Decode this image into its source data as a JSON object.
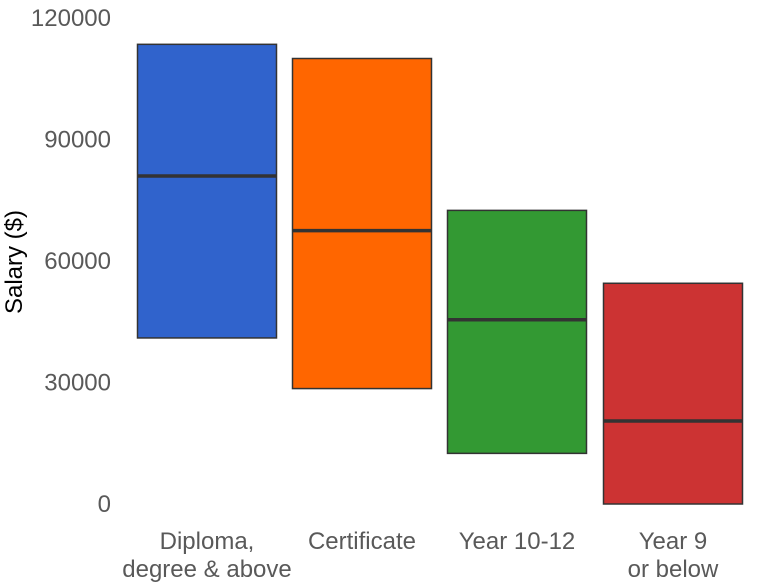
{
  "chart_data": {
    "type": "bar",
    "subtype": "floating-range",
    "title": "",
    "xlabel": "",
    "ylabel": "Salary ($)",
    "ylim": [
      0,
      120000
    ],
    "yticks": [
      "0",
      "30000",
      "60000",
      "90000",
      "120000"
    ],
    "grid": false,
    "legend": "none",
    "categories": [
      [
        "Diploma,",
        "degree & above"
      ],
      [
        "Certificate"
      ],
      [
        "Year 10-12"
      ],
      [
        "Year 9",
        "or below"
      ]
    ],
    "ranges": [
      {
        "low": 41000,
        "median": 81000,
        "high": 113500,
        "color": "#3063CC"
      },
      {
        "low": 28500,
        "median": 67500,
        "high": 110000,
        "color": "#FF6600"
      },
      {
        "low": 12500,
        "median": 45500,
        "high": 72500,
        "color": "#339933"
      },
      {
        "low": 0,
        "median": 20500,
        "high": 54500,
        "color": "#CC3333"
      }
    ]
  }
}
